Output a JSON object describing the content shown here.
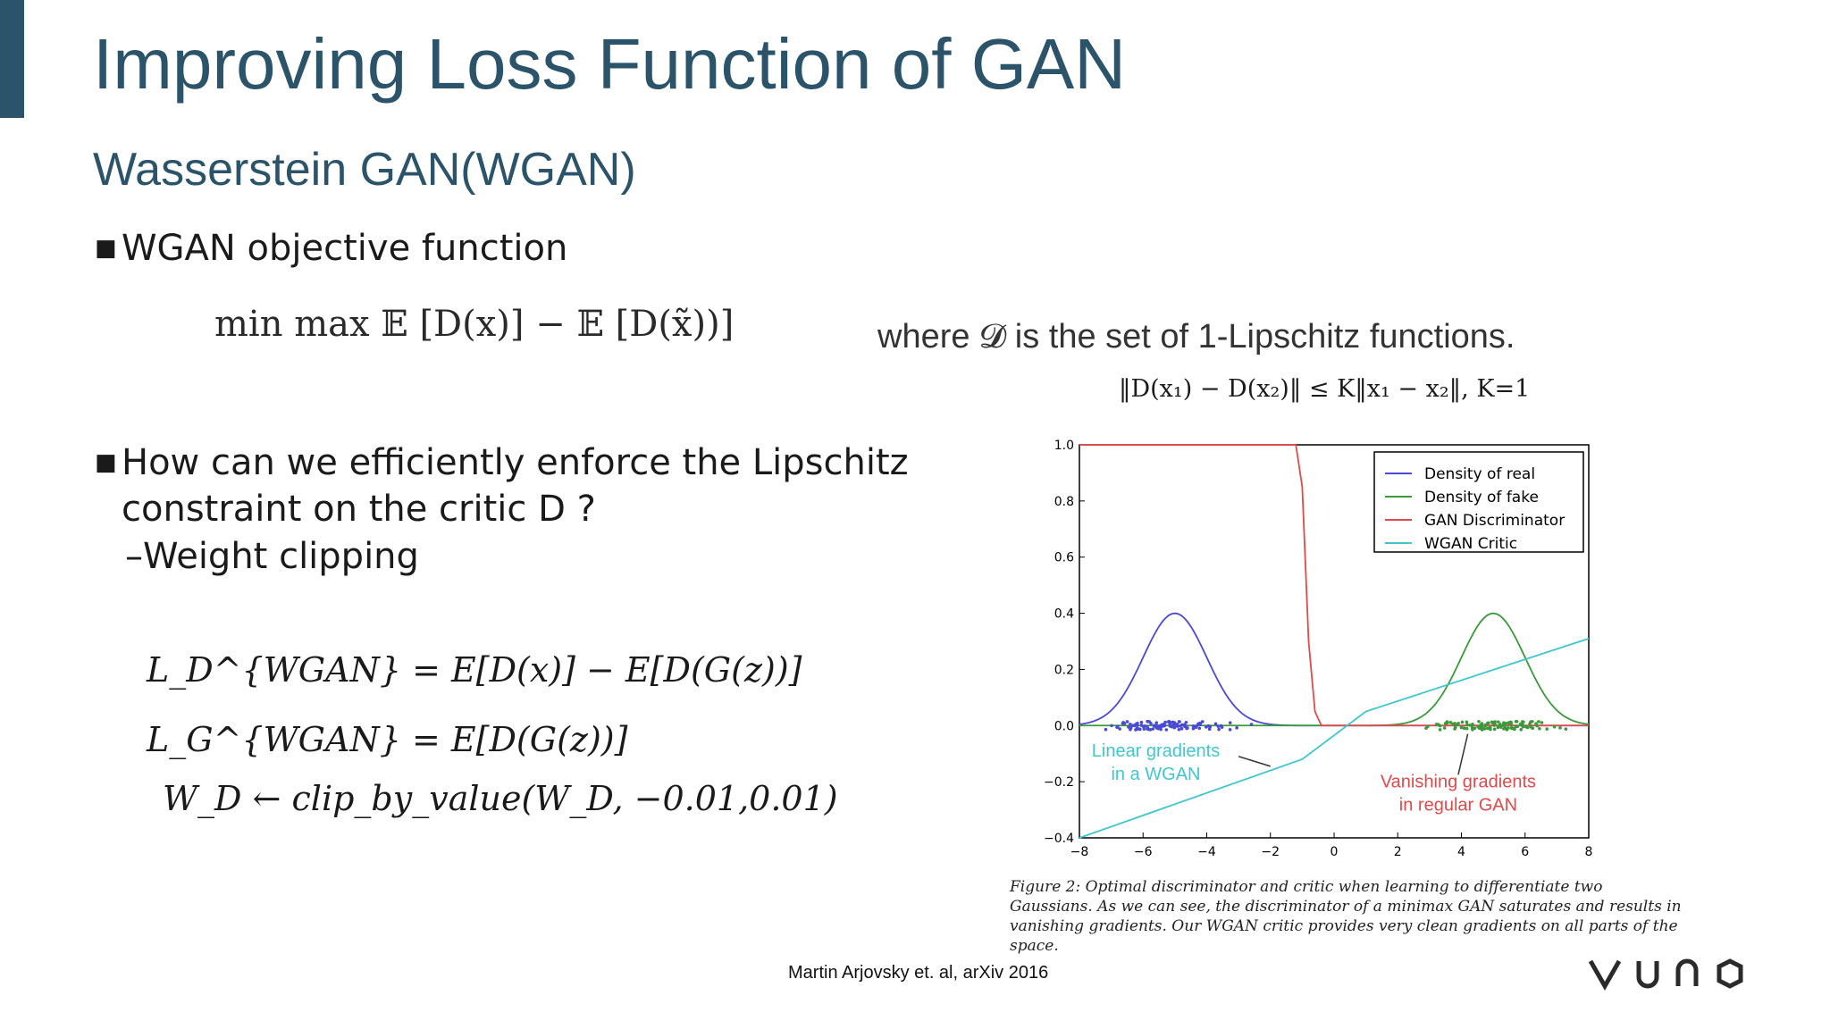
{
  "slide": {
    "title": "Improving Loss Function of GAN",
    "subtitle": "Wasserstein GAN(WGAN)",
    "bullet1": "WGAN objective function",
    "objective_text": "min max 𝔼 [D(x)] − 𝔼 [D(x̃))]",
    "objective_where": "where 𝓓 is the set of 1-Lipschitz functions.",
    "lipschitz": "‖D(x₁) − D(x₂)‖ ≤ K‖x₁ − x₂‖, K=1",
    "bullet2": "How can we efficiently enforce the Lipschitz constraint on the critic D ?",
    "sub_bullet": "–Weight clipping",
    "eq1": "L_D^{WGAN} = E[D(x)] − E[D(G(z))]",
    "eq2": "L_G^{WGAN} = E[D(G(z))]",
    "eq3": "W_D ← clip_by_value(W_D, −0.01,0.01)",
    "caption": "Figure 2: Optimal discriminator and critic when learning to differentiate two Gaussians. As we can see, the discriminator of a minimax GAN saturates and results in vanishing gradients. Our WGAN critic provides very clean gradients on all parts of the space.",
    "citation": "Martin Arjovsky et. al, arXiv 2016",
    "logo_text": "VUNO"
  },
  "chart_data": {
    "type": "line",
    "xlim": [
      -8,
      8
    ],
    "ylim": [
      -0.4,
      1.0
    ],
    "xticks": [
      -8,
      -6,
      -4,
      -2,
      0,
      2,
      4,
      6,
      8
    ],
    "yticks": [
      -0.4,
      -0.2,
      0.0,
      0.2,
      0.4,
      0.6,
      0.8,
      1.0
    ],
    "xtick_labels": [
      "−8",
      "−6",
      "−4",
      "−2",
      "0",
      "2",
      "4",
      "6",
      "8"
    ],
    "ytick_labels": [
      "−0.4",
      "−0.2",
      "0.0",
      "0.2",
      "0.4",
      "0.6",
      "0.8",
      "1.0"
    ],
    "legend_position": "top-right",
    "series": [
      {
        "name": "Density of real",
        "color": "#4a4ad6",
        "mean": -5,
        "std": 1,
        "peak": 0.4
      },
      {
        "name": "Density of fake",
        "color": "#3a9a3a",
        "mean": 5,
        "std": 1,
        "peak": 0.4
      },
      {
        "name": "GAN Discriminator",
        "color": "#e04a4a",
        "x": [
          -8,
          -1.2,
          -1.0,
          -0.8,
          -0.6,
          -0.4,
          8
        ],
        "y": [
          1.0,
          1.0,
          0.85,
          0.3,
          0.05,
          0.0,
          0.0
        ]
      },
      {
        "name": "WGAN Critic",
        "color": "#3fc6d0",
        "x": [
          -8,
          -1,
          1,
          8
        ],
        "y": [
          -0.4,
          -0.12,
          0.05,
          0.31
        ]
      }
    ],
    "annotations": [
      {
        "text_lines": [
          "Linear gradients",
          "in a WGAN"
        ],
        "color": "#3fc6d0"
      },
      {
        "text_lines": [
          "Vanishing gradients",
          "in regular GAN"
        ],
        "color": "#e04a4a"
      }
    ]
  }
}
